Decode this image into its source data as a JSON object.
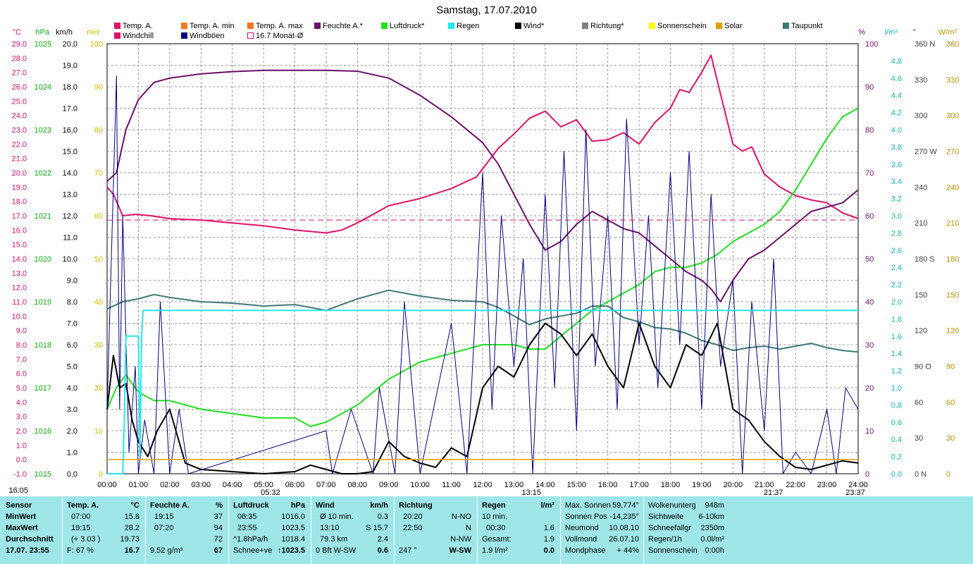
{
  "title": "Samstag, 17.07.2010",
  "axis_headers": {
    "celsius": "°C",
    "hpa": "hPa",
    "kmh": "km/h",
    "min": "min",
    "percent": "%",
    "lm2": "l/m²",
    "deg": "°",
    "wm2": "W/m²"
  },
  "legend": [
    {
      "label": "Temp. A.",
      "color": "#e0106a"
    },
    {
      "label": "Windchill",
      "color": "#e0106a"
    },
    {
      "label": "Temp. A. min",
      "color": "#f07820"
    },
    {
      "label": "Windböen",
      "color": "#000080"
    },
    {
      "label": "Temp. A. max",
      "color": "#f07820"
    },
    {
      "label": "16.7 Monat-Ø",
      "color": "#e0106a"
    },
    {
      "label": "Feuchte A.*",
      "color": "#6a106a"
    },
    {
      "label": "Luftdruck*",
      "color": "#20e020"
    },
    {
      "label": "Regen",
      "color": "#20e8f0"
    },
    {
      "label": "Wind*",
      "color": "#000000"
    },
    {
      "label": "Richtung*",
      "color": "#808080"
    },
    {
      "label": "Sonnenschein",
      "color": "#ffff00"
    },
    {
      "label": "Solar",
      "color": "#e0a000"
    },
    {
      "label": "Taupunkt",
      "color": "#407878"
    }
  ],
  "chart_data": {
    "type": "line",
    "title": "Samstag, 17.07.2010",
    "x_ticks": [
      "00:00",
      "01:00",
      "02:00",
      "03:00",
      "04:00",
      "05:00",
      "06:00",
      "07:00",
      "08:00",
      "09:00",
      "10:00",
      "11:00",
      "12:00",
      "13:00",
      "14:00",
      "15:00",
      "16:00",
      "17:00",
      "18:00",
      "19:00",
      "20:00",
      "21:00",
      "22:00",
      "23:00",
      "24:00"
    ],
    "x_range_hours": [
      0,
      24
    ],
    "y_axes": {
      "temperature_c": {
        "range": [
          -1,
          29
        ],
        "ticks": [
          "29.0",
          "28.0",
          "27.0",
          "26.0",
          "25.0",
          "24.0",
          "23.0",
          "22.0",
          "21.0",
          "20.0",
          "19.0",
          "18.0",
          "17.0",
          "16.0",
          "15.0",
          "14.0",
          "13.0",
          "12.0",
          "11.0",
          "10.0",
          "9.0",
          "8.0",
          "7.0",
          "6.0",
          "5.0",
          "4.0",
          "3.0",
          "2.0",
          "1.0",
          "0.0",
          "-1.0"
        ]
      },
      "pressure_hpa": {
        "range": [
          1015,
          1025
        ],
        "ticks": [
          "1025",
          "1024",
          "1023",
          "1022",
          "1021",
          "1020",
          "1019",
          "1018",
          "1017",
          "1016",
          "1015"
        ]
      },
      "wind_kmh": {
        "range": [
          0,
          20
        ],
        "ticks": [
          "20.0",
          "19.0",
          "18.0",
          "17.0",
          "16.0",
          "15.0",
          "14.0",
          "13.0",
          "12.0",
          "11.0",
          "10.0",
          "9.0",
          "8.0",
          "7.0",
          "6.0",
          "5.0",
          "4.0",
          "3.0",
          "2.0",
          "1.0",
          "0.0"
        ]
      },
      "sun_min": {
        "range": [
          0,
          100
        ],
        "ticks": [
          "100",
          "90",
          "80",
          "70",
          "60",
          "50",
          "40",
          "30",
          "20",
          "10",
          "0"
        ]
      },
      "humidity_pct": {
        "range": [
          0,
          100
        ],
        "ticks": [
          "100",
          "90",
          "80",
          "70",
          "60",
          "50",
          "40",
          "30",
          "20",
          "10",
          "0"
        ]
      },
      "rain_lm2": {
        "range": [
          0,
          5
        ],
        "ticks": [
          "4.8",
          "4.6",
          "4.4",
          "4.2",
          "4.0",
          "3.8",
          "3.6",
          "3.4",
          "3.2",
          "3.0",
          "2.8",
          "2.6",
          "2.4",
          "2.2",
          "2.0",
          "1.8",
          "1.6",
          "1.4",
          "1.2",
          "1.0",
          "0.8",
          "0.6",
          "0.4",
          "0.2",
          "0.0"
        ]
      },
      "direction_deg": {
        "range": [
          0,
          360
        ],
        "ticks": [
          "360 N",
          "330",
          "300",
          "270 W",
          "240",
          "210",
          "180 S",
          "150",
          "120",
          "90 O",
          "60",
          "30",
          "0 N"
        ]
      },
      "solar_wm2": {
        "range": [
          0,
          360
        ],
        "ticks": [
          "360",
          "330",
          "300",
          "270",
          "240",
          "210",
          "180",
          "150",
          "120",
          "90",
          "60",
          "30",
          "0"
        ]
      }
    },
    "series": [
      {
        "name": "Temp. A.",
        "axis": "temperature_c",
        "color": "#e0106a",
        "x": [
          0,
          0.2,
          0.5,
          0.9,
          1.4,
          2.0,
          3.0,
          4.0,
          5.0,
          6.0,
          7.0,
          7.5,
          8.0,
          9.0,
          10.0,
          11.0,
          11.8,
          12.5,
          13.0,
          13.5,
          14.0,
          14.5,
          15.0,
          15.5,
          16.0,
          16.5,
          17.0,
          17.5,
          18.0,
          18.3,
          18.6,
          19.0,
          19.3,
          19.6,
          20.0,
          20.3,
          20.6,
          21.0,
          21.5,
          22.0,
          22.5,
          23.0,
          23.5,
          24.0
        ],
        "y": [
          19.0,
          18.5,
          17.0,
          17.1,
          17.0,
          16.8,
          16.7,
          16.5,
          16.3,
          16.0,
          15.8,
          16.0,
          16.5,
          17.7,
          18.2,
          18.9,
          19.7,
          21.7,
          22.7,
          23.8,
          24.3,
          23.2,
          23.7,
          22.2,
          22.3,
          22.8,
          22.0,
          23.5,
          24.5,
          25.8,
          25.6,
          27.0,
          28.2,
          25.5,
          22.0,
          21.5,
          21.8,
          19.9,
          19.0,
          18.4,
          18.1,
          17.9,
          17.2,
          16.8
        ]
      },
      {
        "name": "Feuchte A.*",
        "axis": "humidity_pct",
        "color": "#6a106a",
        "x": [
          0,
          0.3,
          0.6,
          1.0,
          1.5,
          2.0,
          3.0,
          4.0,
          5.0,
          6.0,
          7.0,
          8.0,
          9.0,
          10.0,
          11.0,
          12.0,
          12.5,
          13.0,
          13.5,
          14.0,
          14.5,
          15.0,
          15.5,
          16.0,
          16.5,
          17.0,
          17.5,
          18.0,
          18.5,
          19.0,
          19.3,
          19.6,
          20.0,
          20.5,
          21.0,
          21.5,
          22.0,
          22.5,
          23.0,
          23.5,
          24.0
        ],
        "y": [
          68,
          70,
          80,
          87,
          91,
          92,
          93,
          93.5,
          93.8,
          93.8,
          93.8,
          93.6,
          92,
          88,
          83,
          77,
          72,
          65,
          58,
          52,
          54,
          58,
          61,
          59,
          57,
          56,
          53,
          50,
          47,
          45,
          43,
          40,
          45,
          50,
          52,
          55,
          58,
          61,
          62,
          63,
          66
        ]
      },
      {
        "name": "Taupunkt",
        "axis": "temperature_c",
        "color": "#407878",
        "x": [
          0,
          0.5,
          1.0,
          1.5,
          2.0,
          3.0,
          4.0,
          5.0,
          6.0,
          7.0,
          8.0,
          9.0,
          10.0,
          11.0,
          12.0,
          12.5,
          13.0,
          13.5,
          14.0,
          14.5,
          15.0,
          15.5,
          16.0,
          16.5,
          17.0,
          17.5,
          18.0,
          18.5,
          19.0,
          19.5,
          20.0,
          20.5,
          21.0,
          21.5,
          22.0,
          22.5,
          23.0,
          23.5,
          24.0
        ],
        "y": [
          10.5,
          11.0,
          11.2,
          11.5,
          11.3,
          11.0,
          10.9,
          10.7,
          10.8,
          10.4,
          11.2,
          11.8,
          11.4,
          11.1,
          11.0,
          10.6,
          10.0,
          9.4,
          9.8,
          10.0,
          10.2,
          10.7,
          10.7,
          9.9,
          9.6,
          9.2,
          9.1,
          8.8,
          8.3,
          8.0,
          7.6,
          7.8,
          7.9,
          7.7,
          7.9,
          8.1,
          7.8,
          7.6,
          7.5
        ]
      },
      {
        "name": "Luftdruck*",
        "axis": "pressure_hpa",
        "color": "#20e020",
        "x": [
          0,
          0.3,
          0.6,
          1.0,
          1.5,
          2.0,
          3.0,
          4.0,
          5.0,
          6.0,
          6.5,
          7.0,
          7.5,
          8.0,
          9.0,
          10.0,
          11.0,
          12.0,
          13.0,
          13.5,
          14.0,
          14.5,
          15.0,
          15.5,
          16.0,
          16.5,
          17.0,
          17.5,
          18.0,
          18.5,
          19.0,
          19.5,
          20.0,
          20.5,
          21.0,
          21.5,
          22.0,
          22.5,
          23.0,
          23.5,
          24.0
        ],
        "y": [
          1016.5,
          1017.0,
          1017.3,
          1016.9,
          1016.7,
          1016.7,
          1016.5,
          1016.4,
          1016.3,
          1016.3,
          1016.1,
          1016.2,
          1016.4,
          1016.6,
          1017.2,
          1017.6,
          1017.8,
          1018.0,
          1018.0,
          1017.9,
          1017.9,
          1018.2,
          1018.5,
          1018.8,
          1019.0,
          1019.2,
          1019.4,
          1019.7,
          1019.8,
          1019.8,
          1019.9,
          1020.1,
          1020.4,
          1020.6,
          1020.8,
          1021.1,
          1021.6,
          1022.2,
          1022.8,
          1023.3,
          1023.5
        ]
      },
      {
        "name": "Wind*",
        "axis": "wind_kmh",
        "color": "#000000",
        "x": [
          0,
          0.2,
          0.4,
          0.6,
          0.8,
          1.0,
          1.3,
          1.6,
          2.0,
          2.5,
          3.0,
          4.0,
          5.0,
          6.0,
          6.5,
          7.0,
          7.5,
          8.0,
          8.5,
          9.0,
          9.5,
          10.0,
          10.5,
          11.0,
          11.5,
          12.0,
          12.5,
          13.0,
          13.5,
          14.0,
          14.5,
          15.0,
          15.5,
          16.0,
          16.5,
          17.0,
          17.5,
          18.0,
          18.5,
          19.0,
          19.5,
          20.0,
          20.5,
          21.0,
          21.5,
          22.0,
          22.5,
          23.0,
          23.5,
          24.0
        ],
        "y": [
          3.0,
          5.5,
          4.0,
          4.2,
          2.5,
          1.5,
          0.8,
          2.0,
          3.0,
          0.5,
          0.2,
          0.1,
          0.0,
          0.1,
          0.4,
          0.2,
          0.0,
          0.0,
          0.1,
          1.5,
          0.8,
          0.5,
          0.3,
          1.2,
          0.8,
          4.0,
          5.0,
          4.5,
          6.0,
          7.0,
          6.5,
          5.5,
          6.5,
          5.0,
          4.0,
          7.0,
          5.0,
          4.0,
          6.0,
          5.5,
          7.0,
          3.0,
          2.5,
          1.5,
          0.8,
          0.3,
          0.2,
          0.4,
          0.6,
          0.5
        ]
      },
      {
        "name": "Windböen",
        "axis": "wind_kmh",
        "color": "#000080",
        "x": [
          0,
          0.3,
          0.4,
          0.5,
          0.7,
          0.9,
          1.0,
          1.2,
          1.5,
          1.7,
          2.0,
          2.3,
          2.6,
          7.0,
          7.2,
          7.8,
          8.5,
          8.7,
          9.2,
          9.5,
          10.0,
          11.0,
          11.5,
          12.0,
          12.3,
          12.6,
          13.0,
          13.3,
          13.6,
          14.0,
          14.3,
          14.6,
          15.0,
          15.3,
          15.6,
          16.0,
          16.3,
          16.6,
          17.0,
          17.3,
          17.6,
          18.0,
          18.3,
          18.6,
          19.0,
          19.3,
          19.6,
          20.0,
          20.3,
          20.6,
          21.0,
          21.3,
          21.6,
          22.0,
          22.5,
          23.0,
          23.3,
          23.6,
          24.0
        ],
        "y": [
          3.0,
          18.5,
          3.0,
          12.0,
          1.0,
          5.0,
          0.0,
          2.5,
          0.0,
          8.0,
          0.0,
          3.0,
          0.0,
          2.0,
          0.0,
          3.0,
          0.0,
          4.0,
          0.0,
          8.0,
          0.0,
          7.0,
          0.0,
          14.0,
          3.0,
          12.0,
          5.0,
          10.0,
          0.0,
          13.0,
          4.0,
          15.0,
          2.0,
          16.0,
          5.0,
          12.0,
          3.0,
          16.5,
          6.0,
          12.0,
          4.0,
          14.0,
          6.0,
          15.0,
          3.0,
          13.0,
          5.0,
          9.0,
          0.0,
          8.0,
          2.0,
          10.0,
          0.0,
          1.0,
          0.0,
          3.0,
          0.0,
          4.0,
          3.0
        ]
      },
      {
        "name": "Regen",
        "axis": "rain_lm2",
        "color": "#20e8f0",
        "x": [
          0,
          0.5,
          0.55,
          0.6,
          1.0,
          1.05,
          1.1,
          1.15,
          1.2,
          24.0
        ],
        "y": [
          0,
          0,
          0.6,
          1.6,
          1.6,
          0.2,
          1.6,
          1.9,
          1.9,
          1.9
        ]
      },
      {
        "name": "16.7 Monat-Ø",
        "axis": "temperature_c",
        "color": "#e0106a",
        "x": [
          0,
          24
        ],
        "y": [
          16.7,
          16.7
        ]
      },
      {
        "name": "Solar",
        "axis": "solar_wm2",
        "color": "#e0a000",
        "x": [
          0,
          24
        ],
        "y": [
          12,
          12
        ]
      }
    ],
    "annotations": {
      "sunrise": "05:32",
      "sunset": "21:37",
      "moonrise": "13:15",
      "moonset": "23:37",
      "left_time": "16:05"
    }
  },
  "footer": {
    "sensor": {
      "header": "Sensor",
      "min": "MinWert",
      "max": "MaxWert",
      "avg": "Durchschnitt",
      "now": "17.07. 23:55"
    },
    "temp": {
      "header": "Temp. A.",
      "unit": "°C",
      "min_time": "07:00",
      "min_val": "15.8",
      "max_time": "19:15",
      "max_val": "28.2",
      "avg_note": "(+ 3.03 )",
      "avg_val": "19.73",
      "now_note": "F: 67 %",
      "now_val": "16.7"
    },
    "hum": {
      "header": "Feuchte A.",
      "unit": "%",
      "min_time": "19:15",
      "min_val": "37",
      "max_time": "07:20",
      "max_val": "94",
      "avg_val": "72",
      "now_note": "9.52 g/m³",
      "now_val": "67"
    },
    "press": {
      "header": "Luftdruck",
      "unit": "hPa",
      "min_time": "06:35",
      "min_val": "1016.0",
      "max_time": "23:55",
      "max_val": "1023.5",
      "avg_note": "^1.8hPa/h",
      "avg_val": "1018.4",
      "now_note": "Schnee+ve",
      "now_val": "1023.5"
    },
    "wind": {
      "header": "Wind",
      "unit": "km/h",
      "min_time": "Ø 10 min.",
      "min_val": "0.3",
      "max_time": "13:10",
      "max_val": "S 15.7",
      "avg_note": "79.3 km",
      "avg_val": "2.4",
      "now_note": "0 Bft W-SW",
      "now_val": "0.6"
    },
    "dir": {
      "header": "Richtung",
      "min_time": "20:20",
      "min_val": "N-NO",
      "max_time": "22:50",
      "max_val": "N",
      "avg_val": "N-NW",
      "now_note": "247 °",
      "now_val": "W-SW"
    },
    "rain": {
      "header": "Regen",
      "unit": "l/m²",
      "r1": "10 min.",
      "r2_l": "00:30",
      "r2_v": "1.6",
      "r3_l": "Gesamt:",
      "r3_v": "1.9",
      "r4_l": "1.9 l/m²",
      "r4_v": "0.0"
    },
    "astro": {
      "l1": "Max. Sonnen",
      "v1": "59,774°",
      "l2": "Sonnen Pos",
      "v2": "-14,235°",
      "l3": "Neumond",
      "v3": "10.08.10",
      "l4": "Vollmond",
      "v4": "26.07.10",
      "l5": "Mondphase",
      "v5": "+ 44%"
    },
    "misc": {
      "l1": "Wolkenunterg",
      "v1": "948m",
      "l2": "Sichtweite",
      "v2": "6-10km",
      "l3": "Schneefallgr",
      "v3": "2350m",
      "l4": "Regen/1h",
      "v4": "0.0l/m²",
      "l5": "Sonnenschein",
      "v5": "0:00h"
    }
  }
}
